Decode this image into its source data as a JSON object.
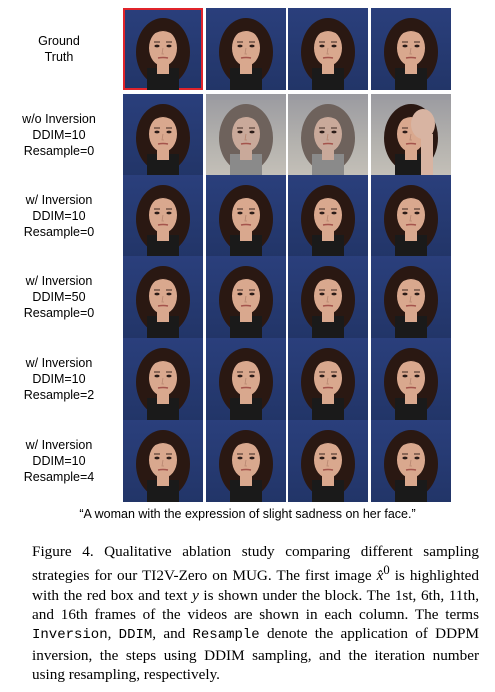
{
  "rows": [
    {
      "lines": [
        "Ground",
        "Truth"
      ]
    },
    {
      "lines": [
        "w/o Inversion",
        "DDIM=10",
        "Resample=0"
      ]
    },
    {
      "lines": [
        "w/ Inversion",
        "DDIM=10",
        "Resample=0"
      ]
    },
    {
      "lines": [
        "w/ Inversion",
        "DDIM=50",
        "Resample=0"
      ]
    },
    {
      "lines": [
        "w/ Inversion",
        "DDIM=10",
        "Resample=2"
      ]
    },
    {
      "lines": [
        "w/ Inversion",
        "DDIM=10",
        "Resample=4"
      ]
    }
  ],
  "prompt_text": "“A woman with the expression of slight sadness on her face.”",
  "caption": {
    "p1": "Figure 4. Qualitative ablation study comparing different sampling strategies for our TI2V-Zero on MUG. The first image ",
    "var_x": "x̂",
    "sup": "0",
    "p2": " is highlighted with the red box and text ",
    "var_y": "y",
    "p3": " is shown under the block. The 1st, 6th, 11th, and 16th frames of the videos are shown in each column. The terms ",
    "term1": "Inversion",
    "sep1": ", ",
    "term2": "DDIM",
    "sep2": ", and ",
    "term3": "Resample",
    "p4": " denote the application of DDPM inversion, the steps using DDIM sampling, and the iteration number using resampling, respectively."
  },
  "colors": {
    "backdrop": "#223568",
    "highlight_box": "#e0242b",
    "hair": "#2a1812",
    "skin": "#d9a88e"
  }
}
